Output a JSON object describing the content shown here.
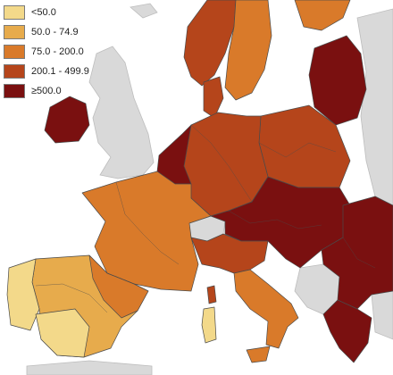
{
  "legend": {
    "items": [
      {
        "label": "<50.0",
        "color": "#f3d98a"
      },
      {
        "label": "50.0 - 74.9",
        "color": "#e7ab4c"
      },
      {
        "label": "75.0 - 200.0",
        "color": "#d97a2a"
      },
      {
        "label": "200.1 - 499.9",
        "color": "#b5451b"
      },
      {
        "label": "≥500.0",
        "color": "#7a1010"
      }
    ]
  },
  "colors": {
    "background": "#ffffff",
    "sea": "#ffffff",
    "no_data_land": "#d9d9d9",
    "border": "#4a4a4a"
  },
  "regions": [
    {
      "name": "iceland-uk-nodata",
      "class": "nodata"
    },
    {
      "name": "ireland",
      "class": "≥500.0"
    },
    {
      "name": "norway",
      "class": "200.1 - 499.9"
    },
    {
      "name": "sweden",
      "class": "75.0 - 200.0"
    },
    {
      "name": "finland",
      "class": "75.0 - 200.0"
    },
    {
      "name": "denmark",
      "class": "200.1 - 499.9"
    },
    {
      "name": "baltics",
      "class": "≥500.0"
    },
    {
      "name": "poland",
      "class": "200.1 - 499.9"
    },
    {
      "name": "germany",
      "class": "200.1 - 499.9"
    },
    {
      "name": "netherlands-belgium",
      "class": "≥500.0"
    },
    {
      "name": "france",
      "class": "75.0 - 200.0"
    },
    {
      "name": "switzerland",
      "class": "nodata"
    },
    {
      "name": "austria-czechia-slovakia-hungary",
      "class": "≥500.0"
    },
    {
      "name": "italy-north",
      "class": "200.1 - 499.9"
    },
    {
      "name": "italy-south",
      "class": "75.0 - 200.0"
    },
    {
      "name": "spain-portugal",
      "class": "50.0 - 74.9"
    },
    {
      "name": "balkans-romania-bulgaria",
      "class": "≥500.0"
    },
    {
      "name": "greece",
      "class": "≥500.0"
    },
    {
      "name": "western-balkans-nodata",
      "class": "nodata"
    }
  ]
}
